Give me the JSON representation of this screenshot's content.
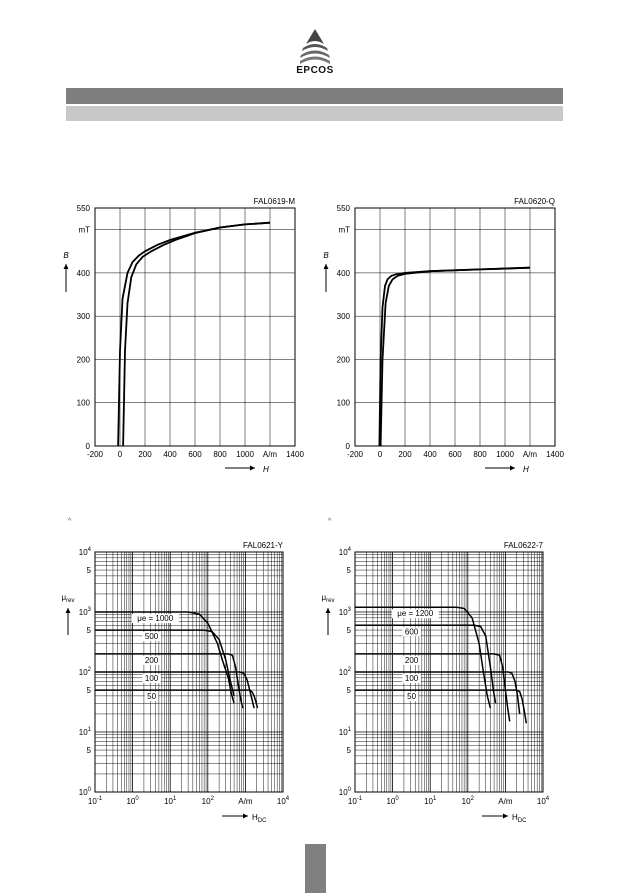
{
  "logo": {
    "text": "EPCOS"
  },
  "marks": [
    "^",
    "^"
  ],
  "chart_data": [
    {
      "type": "line",
      "id": "FAL0619-M",
      "xlabel": "H",
      "ylabel": "B",
      "ylabel_unit": "mT",
      "xlim": [
        -200,
        1400
      ],
      "ylim": [
        0,
        550
      ],
      "x_ticks": [
        "-200",
        "0",
        "200",
        "400",
        "600",
        "800",
        "1000",
        "A/m",
        "1400"
      ],
      "y_ticks": [
        "0",
        "100",
        "200",
        "300",
        "400",
        "550"
      ],
      "grid": true,
      "series": [
        {
          "x": [
            -15,
            0,
            20,
            60,
            100,
            150,
            200,
            300,
            400,
            600,
            800,
            1000,
            1200
          ],
          "y": [
            0,
            220,
            340,
            400,
            425,
            440,
            450,
            465,
            476,
            493,
            505,
            512,
            516
          ]
        },
        {
          "x": [
            25,
            40,
            60,
            90,
            130,
            180,
            250,
            350,
            450,
            600,
            800,
            1000,
            1200
          ],
          "y": [
            0,
            220,
            330,
            390,
            420,
            437,
            450,
            465,
            477,
            492,
            505,
            512,
            516
          ]
        }
      ]
    },
    {
      "type": "line",
      "id": "FAL0620-Q",
      "xlabel": "H",
      "ylabel": "B",
      "ylabel_unit": "mT",
      "xlim": [
        -200,
        1400
      ],
      "ylim": [
        0,
        550
      ],
      "x_ticks": [
        "-200",
        "0",
        "200",
        "400",
        "600",
        "800",
        "1000",
        "A/m",
        "1400"
      ],
      "y_ticks": [
        "0",
        "100",
        "200",
        "300",
        "400",
        "550"
      ],
      "grid": true,
      "series": [
        {
          "x": [
            -5,
            5,
            20,
            40,
            60,
            90,
            130,
            200,
            400,
            800,
            1200
          ],
          "y": [
            0,
            200,
            320,
            370,
            385,
            393,
            397,
            400,
            404,
            408,
            412
          ]
        },
        {
          "x": [
            5,
            20,
            45,
            70,
            100,
            140,
            200,
            400,
            800,
            1200
          ],
          "y": [
            0,
            200,
            330,
            370,
            385,
            393,
            398,
            404,
            408,
            412
          ]
        }
      ]
    },
    {
      "type": "line",
      "id": "FAL0621-Y",
      "xlabel": "H_DC",
      "ylabel": "μ_rev",
      "x_scale": "log",
      "y_scale": "log",
      "xlim": [
        0.1,
        10000
      ],
      "ylim": [
        1,
        10000
      ],
      "x_ticks": [
        "10^-1",
        "10^0",
        "10^1",
        "10^2",
        "A/m",
        "10^4"
      ],
      "y_ticks": [
        "10^0",
        "5",
        "10^1",
        "5",
        "10^2",
        "5",
        "10^3",
        "5",
        "10^4"
      ],
      "grid": true,
      "series": [
        {
          "name": "1000",
          "x": [
            0.1,
            30,
            60,
            100,
            180,
            250,
            350,
            420,
            500
          ],
          "y": [
            1000,
            1000,
            920,
            650,
            300,
            150,
            80,
            45,
            30
          ]
        },
        {
          "name": "500",
          "x": [
            0.1,
            80,
            130,
            200,
            300,
            400,
            500
          ],
          "y": [
            500,
            500,
            470,
            350,
            160,
            70,
            40
          ]
        },
        {
          "name": "200",
          "x": [
            0.1,
            350,
            450,
            550,
            650,
            750,
            850
          ],
          "y": [
            200,
            200,
            190,
            120,
            60,
            35,
            25
          ]
        },
        {
          "name": "100",
          "x": [
            0.1,
            700,
            900,
            1100,
            1300,
            1500,
            1700
          ],
          "y": [
            100,
            100,
            95,
            75,
            50,
            35,
            25
          ]
        },
        {
          "name": "50",
          "x": [
            0.1,
            1300,
            1500,
            1700,
            1900,
            2100
          ],
          "y": [
            50,
            50,
            47,
            40,
            32,
            25
          ]
        }
      ],
      "annotations": [
        "μe = 1000",
        "500",
        "200",
        "100",
        "50"
      ]
    },
    {
      "type": "line",
      "id": "FAL0622-7",
      "xlabel": "H_DC",
      "ylabel": "μ_rev",
      "x_scale": "log",
      "y_scale": "log",
      "xlim": [
        0.1,
        10000
      ],
      "ylim": [
        1,
        10000
      ],
      "x_ticks": [
        "10^-1",
        "10^0",
        "10^1",
        "10^2",
        "A/m",
        "10^4"
      ],
      "y_ticks": [
        "10^0",
        "5",
        "10^1",
        "5",
        "10^2",
        "5",
        "10^3",
        "5",
        "10^4"
      ],
      "grid": true,
      "series": [
        {
          "name": "1200",
          "x": [
            0.1,
            50,
            80,
            130,
            200,
            260,
            330,
            400
          ],
          "y": [
            1200,
            1200,
            1150,
            800,
            300,
            100,
            40,
            25
          ]
        },
        {
          "name": "600",
          "x": [
            0.1,
            150,
            220,
            300,
            400,
            480,
            550
          ],
          "y": [
            600,
            600,
            570,
            400,
            120,
            50,
            30
          ]
        },
        {
          "name": "200",
          "x": [
            0.1,
            500,
            700,
            850,
            1000,
            1150,
            1300
          ],
          "y": [
            200,
            200,
            190,
            120,
            50,
            25,
            15
          ]
        },
        {
          "name": "100",
          "x": [
            0.1,
            1200,
            1500,
            1800,
            2100,
            2400
          ],
          "y": [
            100,
            100,
            95,
            70,
            40,
            20
          ]
        },
        {
          "name": "50",
          "x": [
            0.1,
            2000,
            2400,
            2800,
            3200,
            3600
          ],
          "y": [
            50,
            50,
            47,
            35,
            22,
            14
          ]
        }
      ],
      "annotations": [
        "μe = 1200",
        "600",
        "200",
        "100",
        "50"
      ]
    }
  ]
}
